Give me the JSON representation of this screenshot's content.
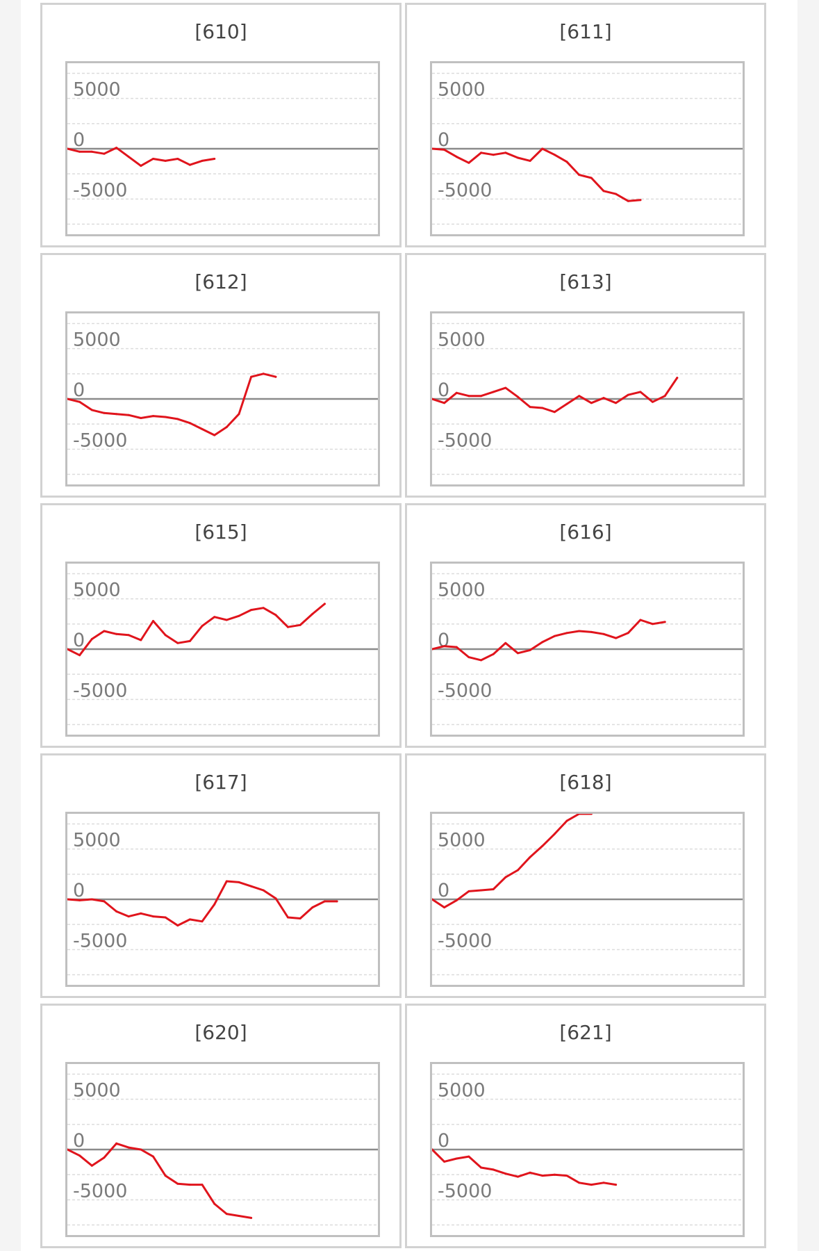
{
  "colors": {
    "series": "#e0141c",
    "zero_line": "#8a8a8a",
    "grid": "#dcdcdc",
    "frame": "#c0c0c0"
  },
  "chart_data": [
    {
      "type": "line",
      "title": "[610]",
      "ylim": [
        -8500,
        8500
      ],
      "yticks": [
        5000,
        0,
        -5000
      ],
      "grid": true,
      "values": [
        0,
        -300,
        -300,
        -500,
        100,
        -800,
        -1700,
        -1000,
        -1200,
        -1000,
        -1600,
        -1200,
        -1000
      ]
    },
    {
      "type": "line",
      "title": "[611]",
      "ylim": [
        -8500,
        8500
      ],
      "yticks": [
        5000,
        0,
        -5000
      ],
      "grid": true,
      "values": [
        0,
        -100,
        -800,
        -1400,
        -400,
        -600,
        -400,
        -900,
        -1200,
        0,
        -600,
        -1300,
        -2600,
        -2900,
        -4200,
        -4500,
        -5200,
        -5100
      ]
    },
    {
      "type": "line",
      "title": "[612]",
      "ylim": [
        -8500,
        8500
      ],
      "yticks": [
        5000,
        0,
        -5000
      ],
      "grid": true,
      "values": [
        0,
        -300,
        -1100,
        -1400,
        -1500,
        -1600,
        -1900,
        -1700,
        -1800,
        -2000,
        -2400,
        -3000,
        -3600,
        -2800,
        -1500,
        2200,
        2500,
        2200
      ]
    },
    {
      "type": "line",
      "title": "[613]",
      "ylim": [
        -8500,
        8500
      ],
      "yticks": [
        5000,
        0,
        -5000
      ],
      "grid": true,
      "values": [
        0,
        -400,
        600,
        300,
        300,
        700,
        1100,
        200,
        -800,
        -900,
        -1300,
        -500,
        300,
        -400,
        100,
        -400,
        400,
        700,
        -300,
        300,
        2100
      ]
    },
    {
      "type": "line",
      "title": "[615]",
      "ylim": [
        -8500,
        8500
      ],
      "yticks": [
        5000,
        0,
        -5000
      ],
      "grid": true,
      "values": [
        0,
        -600,
        1000,
        1800,
        1500,
        1400,
        900,
        2800,
        1400,
        600,
        800,
        2300,
        3200,
        2900,
        3300,
        3900,
        4100,
        3400,
        2200,
        2400,
        3500,
        4500
      ]
    },
    {
      "type": "line",
      "title": "[616]",
      "ylim": [
        -8500,
        8500
      ],
      "yticks": [
        5000,
        0,
        -5000
      ],
      "grid": true,
      "values": [
        0,
        300,
        200,
        -800,
        -1100,
        -500,
        600,
        -400,
        -100,
        700,
        1300,
        1600,
        1800,
        1700,
        1500,
        1100,
        1600,
        2900,
        2500,
        2700
      ]
    },
    {
      "type": "line",
      "title": "[617]",
      "ylim": [
        -8500,
        8500
      ],
      "yticks": [
        5000,
        0,
        -5000
      ],
      "grid": true,
      "values": [
        0,
        -100,
        0,
        -200,
        -1200,
        -1700,
        -1400,
        -1700,
        -1800,
        -2600,
        -2000,
        -2200,
        -500,
        1800,
        1700,
        1300,
        900,
        100,
        -1800,
        -1900,
        -800,
        -200,
        -200
      ]
    },
    {
      "type": "line",
      "title": "[618]",
      "ylim": [
        -8500,
        8500
      ],
      "yticks": [
        5000,
        0,
        -5000
      ],
      "grid": true,
      "values": [
        0,
        -800,
        -100,
        800,
        900,
        1000,
        2200,
        2900,
        4200,
        5300,
        6500,
        7800,
        8500,
        8500
      ]
    },
    {
      "type": "line",
      "title": "[620]",
      "ylim": [
        -8500,
        8500
      ],
      "yticks": [
        5000,
        0,
        -5000
      ],
      "grid": true,
      "values": [
        0,
        -600,
        -1600,
        -800,
        600,
        200,
        0,
        -700,
        -2600,
        -3400,
        -3500,
        -3500,
        -5400,
        -6400,
        -6600,
        -6800
      ]
    },
    {
      "type": "line",
      "title": "[621]",
      "ylim": [
        -8500,
        8500
      ],
      "yticks": [
        5000,
        0,
        -5000
      ],
      "grid": true,
      "values": [
        0,
        -1200,
        -900,
        -700,
        -1800,
        -2000,
        -2400,
        -2700,
        -2300,
        -2600,
        -2500,
        -2600,
        -3300,
        -3500,
        -3300,
        -3500
      ]
    }
  ]
}
